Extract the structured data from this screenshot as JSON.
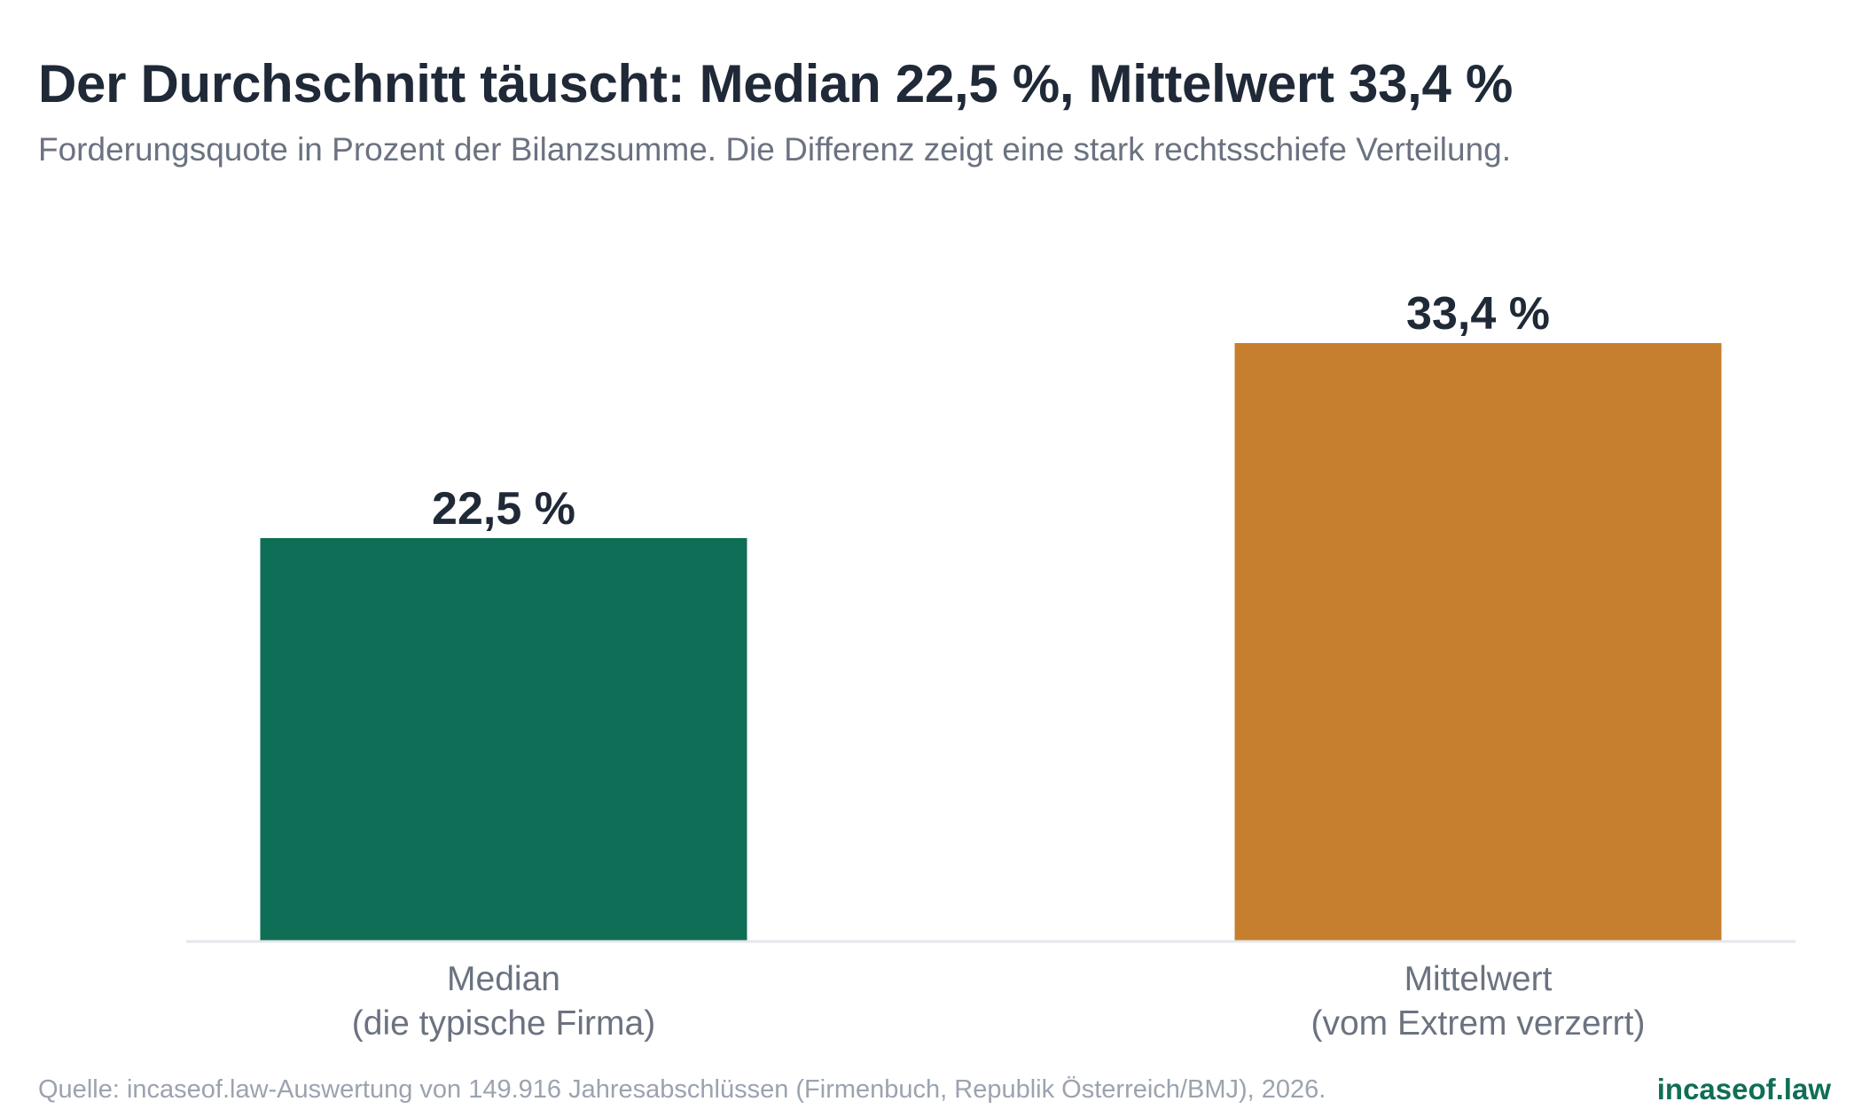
{
  "header": {
    "title": "Der Durchschnitt täuscht: Median 22,5 %, Mittelwert 33,4 %",
    "subtitle": "Forderungsquote in Prozent der Bilanzsumme. Die Differenz zeigt eine stark rechtsschiefe Verteilung."
  },
  "chart_data": {
    "type": "bar",
    "categories": [
      [
        "Median",
        "(die typische Firma)"
      ],
      [
        "Mittelwert",
        "(vom Extrem verzerrt)"
      ]
    ],
    "values": [
      22.5,
      33.4
    ],
    "value_labels": [
      "22,5 %",
      "33,4 %"
    ],
    "colors": [
      "#0f6e56",
      "#c67f2e"
    ],
    "ylim": [
      0,
      36
    ],
    "grid": false,
    "axis_color": "#e5e7eb"
  },
  "footer": {
    "source": "Quelle: incaseof.law-Auswertung von 149.916 Jahresabschlüssen (Firmenbuch, Republik Österreich/BMJ), 2026.",
    "brand": "incaseof.law"
  }
}
